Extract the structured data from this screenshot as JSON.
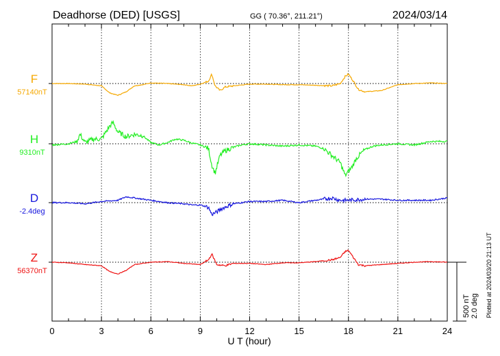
{
  "chart_data": {
    "type": "line",
    "title": "Deadhorse (DED)  [USGS]",
    "subtitle": "GG ( 70.36°, 211.21°)",
    "date": "2024/03/14",
    "xlabel": "U T (hour)",
    "xlim": [
      0,
      24
    ],
    "xticks": [
      "0",
      "3",
      "6",
      "9",
      "12",
      "15",
      "18",
      "21",
      "24"
    ],
    "scale_label_1": "500 nT",
    "scale_label_2": "2.0 deg",
    "plotted_note": "Plotted at 2024/03/20 21:13 UT",
    "series": [
      {
        "name": "F",
        "baseline_label": "57140nT",
        "color": "#f5a800",
        "offset_nT": [
          [
            0,
            0
          ],
          [
            1,
            0
          ],
          [
            2,
            -5
          ],
          [
            3,
            -20
          ],
          [
            3.5,
            -80
          ],
          [
            4,
            -100
          ],
          [
            4.5,
            -70
          ],
          [
            5,
            -20
          ],
          [
            5.5,
            -10
          ],
          [
            6,
            5
          ],
          [
            7,
            0
          ],
          [
            8,
            -10
          ],
          [
            8.5,
            -20
          ],
          [
            9,
            -5
          ],
          [
            9.5,
            20
          ],
          [
            9.7,
            80
          ],
          [
            9.9,
            -20
          ],
          [
            10.2,
            -60
          ],
          [
            10.5,
            -30
          ],
          [
            11,
            -20
          ],
          [
            12,
            -5
          ],
          [
            13,
            -5
          ],
          [
            14,
            -10
          ],
          [
            15,
            -10
          ],
          [
            16,
            -15
          ],
          [
            17,
            -20
          ],
          [
            17.5,
            0
          ],
          [
            17.8,
            60
          ],
          [
            18,
            80
          ],
          [
            18.3,
            20
          ],
          [
            18.6,
            -50
          ],
          [
            19,
            -70
          ],
          [
            20,
            -60
          ],
          [
            21,
            -10
          ],
          [
            22,
            0
          ],
          [
            23,
            5
          ],
          [
            24,
            0
          ]
        ]
      },
      {
        "name": "H",
        "baseline_label": "9310nT",
        "color": "#22ee22",
        "offset_nT": [
          [
            0,
            -10
          ],
          [
            1,
            0
          ],
          [
            1.5,
            20
          ],
          [
            1.7,
            80
          ],
          [
            2,
            10
          ],
          [
            2.5,
            40
          ],
          [
            3,
            40
          ],
          [
            3.5,
            150
          ],
          [
            3.7,
            180
          ],
          [
            4,
            100
          ],
          [
            4.5,
            60
          ],
          [
            5,
            80
          ],
          [
            5.5,
            70
          ],
          [
            6,
            10
          ],
          [
            6.5,
            -10
          ],
          [
            7,
            10
          ],
          [
            7.5,
            40
          ],
          [
            8,
            30
          ],
          [
            8.5,
            5
          ],
          [
            9,
            -10
          ],
          [
            9.5,
            -40
          ],
          [
            9.7,
            -180
          ],
          [
            9.9,
            -250
          ],
          [
            10.2,
            -100
          ],
          [
            10.5,
            -60
          ],
          [
            11,
            -30
          ],
          [
            11.5,
            -10
          ],
          [
            12,
            0
          ],
          [
            13,
            -10
          ],
          [
            14,
            -20
          ],
          [
            15,
            -10
          ],
          [
            16,
            -20
          ],
          [
            16.5,
            -40
          ],
          [
            17,
            -100
          ],
          [
            17.5,
            -160
          ],
          [
            17.8,
            -270
          ],
          [
            18.2,
            -200
          ],
          [
            18.5,
            -120
          ],
          [
            19,
            -50
          ],
          [
            19.5,
            -20
          ],
          [
            20,
            -10
          ],
          [
            21,
            0
          ],
          [
            22,
            -10
          ],
          [
            23,
            20
          ],
          [
            24,
            20
          ]
        ]
      },
      {
        "name": "D",
        "baseline_label": "-2.4deg",
        "color": "#1515dd",
        "offset_nT": [
          [
            0,
            0
          ],
          [
            1,
            0
          ],
          [
            2,
            -10
          ],
          [
            3,
            10
          ],
          [
            4,
            20
          ],
          [
            4.5,
            50
          ],
          [
            5,
            40
          ],
          [
            6,
            20
          ],
          [
            7,
            0
          ],
          [
            8,
            -10
          ],
          [
            8.5,
            -20
          ],
          [
            9,
            -20
          ],
          [
            9.5,
            -40
          ],
          [
            9.7,
            -100
          ],
          [
            10,
            -80
          ],
          [
            10.3,
            -50
          ],
          [
            11,
            -10
          ],
          [
            12,
            10
          ],
          [
            13,
            10
          ],
          [
            14,
            20
          ],
          [
            15,
            0
          ],
          [
            16,
            20
          ],
          [
            17,
            40
          ],
          [
            17.5,
            20
          ],
          [
            18,
            20
          ],
          [
            19,
            30
          ],
          [
            20,
            30
          ],
          [
            21,
            20
          ],
          [
            22,
            20
          ],
          [
            23,
            20
          ],
          [
            24,
            40
          ]
        ]
      },
      {
        "name": "Z",
        "baseline_label": "56370nT",
        "color": "#ee1111",
        "offset_nT": [
          [
            0,
            0
          ],
          [
            1,
            -5
          ],
          [
            2,
            -20
          ],
          [
            3,
            -30
          ],
          [
            3.5,
            -80
          ],
          [
            4,
            -100
          ],
          [
            4.5,
            -70
          ],
          [
            5,
            -20
          ],
          [
            6,
            0
          ],
          [
            7,
            5
          ],
          [
            8,
            -10
          ],
          [
            9,
            -20
          ],
          [
            9.5,
            20
          ],
          [
            9.7,
            70
          ],
          [
            10,
            -20
          ],
          [
            10.5,
            -30
          ],
          [
            11,
            -10
          ],
          [
            12,
            -10
          ],
          [
            13,
            -20
          ],
          [
            14,
            -5
          ],
          [
            15,
            -5
          ],
          [
            16,
            5
          ],
          [
            17,
            20
          ],
          [
            17.5,
            40
          ],
          [
            17.8,
            90
          ],
          [
            18,
            100
          ],
          [
            18.3,
            40
          ],
          [
            18.6,
            -20
          ],
          [
            19,
            -30
          ],
          [
            20,
            -20
          ],
          [
            21,
            -10
          ],
          [
            22,
            0
          ],
          [
            23,
            5
          ],
          [
            24,
            0
          ]
        ]
      }
    ],
    "grid": "vertical dotted at each 3 hours, horizontal dotted baseline per component"
  }
}
